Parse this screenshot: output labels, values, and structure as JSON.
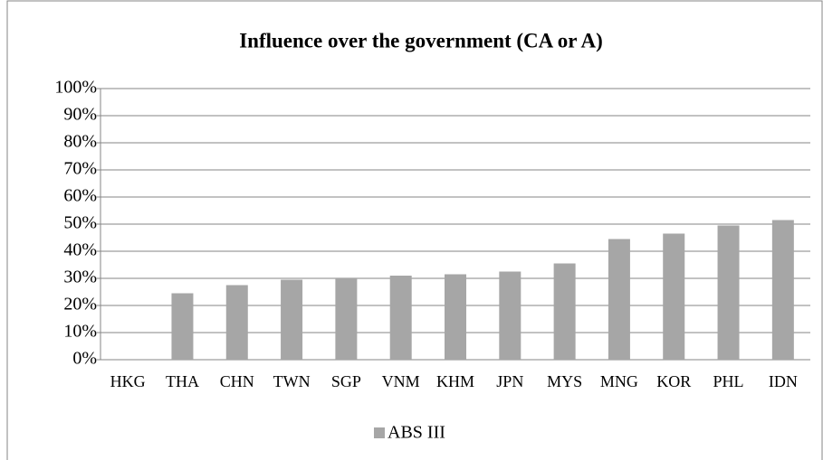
{
  "chart_data": {
    "type": "bar",
    "title": "Influence over the government (CA or A)",
    "categories": [
      "HKG",
      "THA",
      "CHN",
      "TWN",
      "SGP",
      "VNM",
      "KHM",
      "JPN",
      "MYS",
      "MNG",
      "KOR",
      "PHL",
      "IDN"
    ],
    "series": [
      {
        "name": "ABS III",
        "color": "#a6a6a6",
        "values": [
          0,
          24.5,
          27.5,
          29.5,
          30,
          31,
          31.5,
          32.5,
          35.5,
          44.5,
          46.5,
          49.5,
          51.5
        ]
      }
    ],
    "ylim": [
      0,
      100
    ],
    "yticks": [
      {
        "value": 0,
        "label": "0%"
      },
      {
        "value": 10,
        "label": "10%"
      },
      {
        "value": 20,
        "label": "20%"
      },
      {
        "value": 30,
        "label": "30%"
      },
      {
        "value": 40,
        "label": "40%"
      },
      {
        "value": 50,
        "label": "50%"
      },
      {
        "value": 60,
        "label": "60%"
      },
      {
        "value": 70,
        "label": "70%"
      },
      {
        "value": 80,
        "label": "80%"
      },
      {
        "value": 90,
        "label": "90%"
      },
      {
        "value": 100,
        "label": "100%"
      }
    ],
    "grid": true,
    "legend": "bottom"
  }
}
